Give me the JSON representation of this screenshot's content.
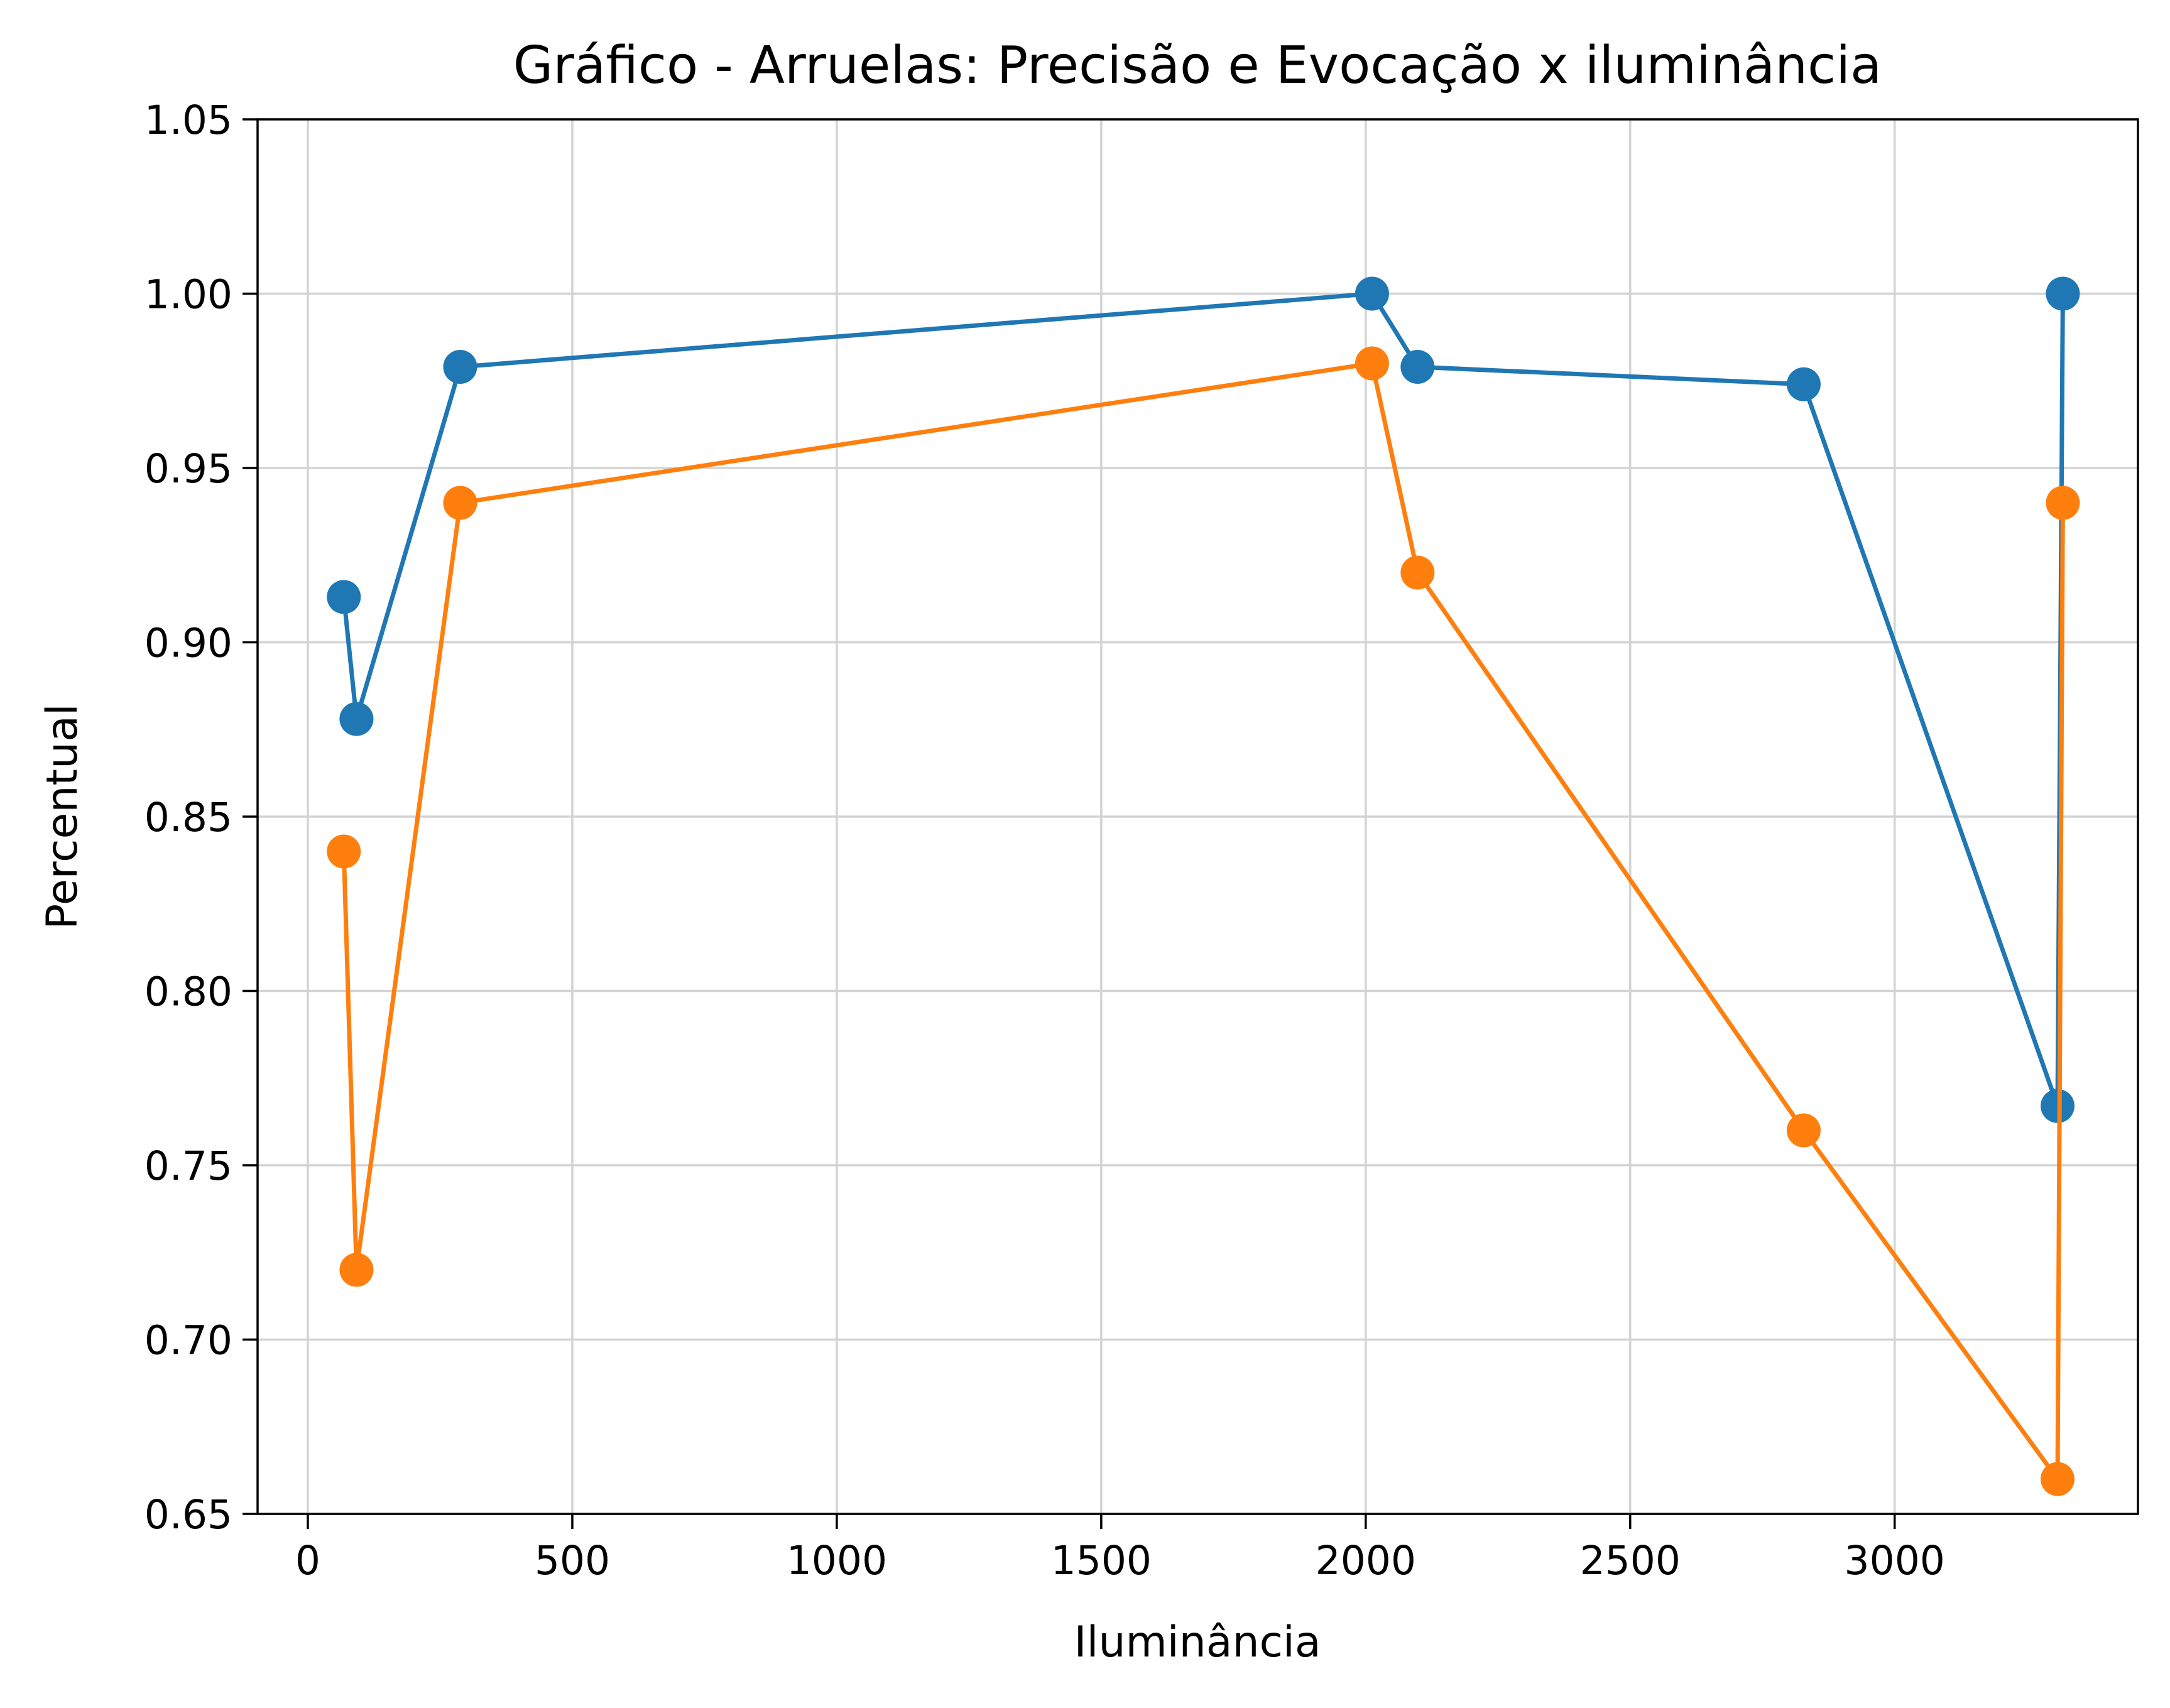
{
  "chart_data": {
    "type": "line",
    "title": "Gráfico - Arruelas: Precisão e Evocação x iluminância",
    "xlabel": "Iluminância",
    "ylabel": "Percentual",
    "xlim": [
      -95,
      3460
    ],
    "ylim": [
      0.65,
      1.05
    ],
    "xticks": [
      0,
      500,
      1000,
      1500,
      2000,
      2500,
      3000
    ],
    "yticks": [
      0.65,
      0.7,
      0.75,
      0.8,
      0.85,
      0.9,
      0.95,
      1.0,
      1.05
    ],
    "xtick_labels": [
      "0",
      "500",
      "1000",
      "1500",
      "2000",
      "2500",
      "3000"
    ],
    "ytick_labels": [
      "0.65",
      "0.70",
      "0.75",
      "0.80",
      "0.85",
      "0.90",
      "0.95",
      "1.00",
      "1.05"
    ],
    "grid": true,
    "markers": true,
    "series": [
      {
        "color": "#1f77b4",
        "x": [
          68,
          92,
          288,
          2012,
          2098,
          2828,
          3308,
          3318
        ],
        "y": [
          0.913,
          0.878,
          0.979,
          1.0,
          0.979,
          0.974,
          0.767,
          1.0
        ]
      },
      {
        "color": "#ff7f0e",
        "x": [
          68,
          92,
          288,
          2012,
          2098,
          2828,
          3308,
          3318
        ],
        "y": [
          0.84,
          0.72,
          0.94,
          0.98,
          0.92,
          0.76,
          0.66,
          0.94
        ]
      }
    ]
  }
}
